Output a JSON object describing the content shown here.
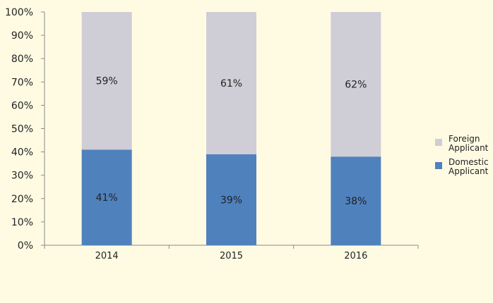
{
  "chart_data": {
    "type": "bar",
    "stacked": true,
    "categories": [
      "2014",
      "2015",
      "2016"
    ],
    "series": [
      {
        "name": "Domestic Applicant",
        "values": [
          41,
          39,
          38
        ],
        "labels": [
          "41%",
          "39%",
          "38%"
        ],
        "color": "#4f81bd"
      },
      {
        "name": "Foreign Applicant",
        "values": [
          59,
          61,
          62
        ],
        "labels": [
          "59%",
          "61%",
          "62%"
        ],
        "color": "#cfcdd6"
      }
    ],
    "ylim": [
      0,
      100
    ],
    "yticks": [
      0,
      10,
      20,
      30,
      40,
      50,
      60,
      70,
      80,
      90,
      100
    ],
    "ytick_labels": [
      "0%",
      "10%",
      "20%",
      "30%",
      "40%",
      "50%",
      "60%",
      "70%",
      "80%",
      "90%",
      "100%"
    ],
    "grid": false,
    "legend_position": "right",
    "title": "",
    "xlabel": "",
    "ylabel": ""
  }
}
